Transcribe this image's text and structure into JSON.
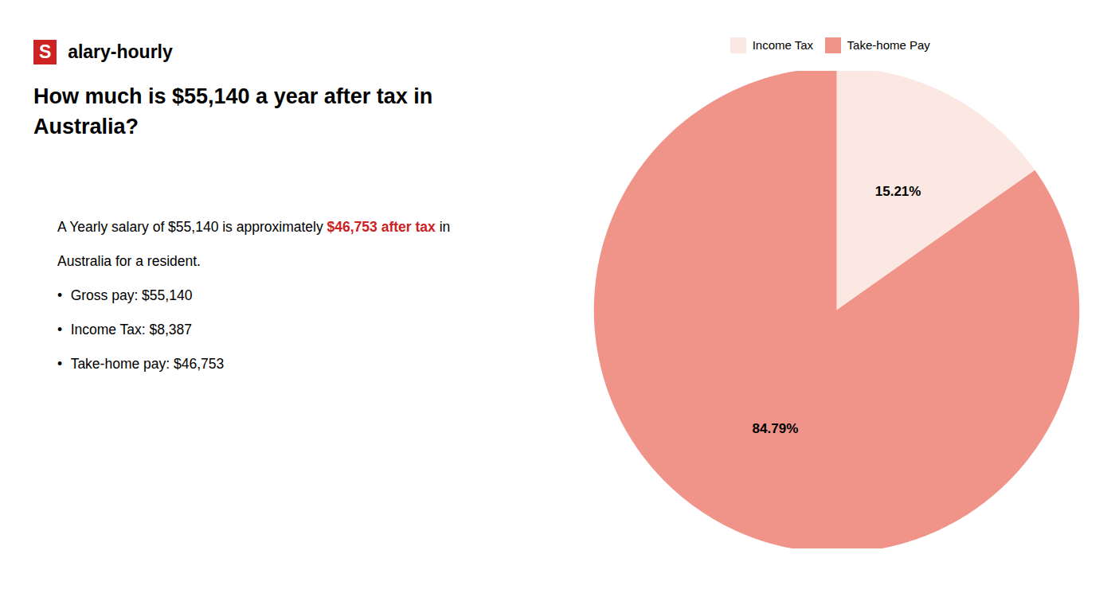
{
  "chart_data": {
    "type": "pie",
    "title": "How much is $55,140 a year after tax in\nAustralia?",
    "categories": [
      "Income Tax",
      "Take-home Pay"
    ],
    "values": [
      15.21,
      84.79
    ],
    "value_labels": [
      "15.21%",
      "84.79%"
    ],
    "colors": [
      "#fce8e2",
      "#f0948a"
    ],
    "data_labels": true,
    "legend": "top",
    "annotations": [
      [
        {
          "text": "S",
          "color": "#cc2222"
        },
        {
          "text": "alary-hourly"
        }
      ],
      [
        {
          "text": "A Yearly salary of $55,140 is approximately "
        },
        {
          "text": "$46,753 after tax",
          "color": "#cc2222"
        },
        {
          "text": " in"
        }
      ],
      [
        {
          "text": "Australia for a resident."
        }
      ],
      [
        {
          "text": "•"
        },
        {
          "text": "Gross pay: $55,140"
        }
      ],
      [
        {
          "text": "•"
        },
        {
          "text": "Income Tax: $8,387"
        }
      ],
      [
        {
          "text": "•"
        },
        {
          "text": "Take-home pay: $46,753"
        }
      ]
    ]
  }
}
